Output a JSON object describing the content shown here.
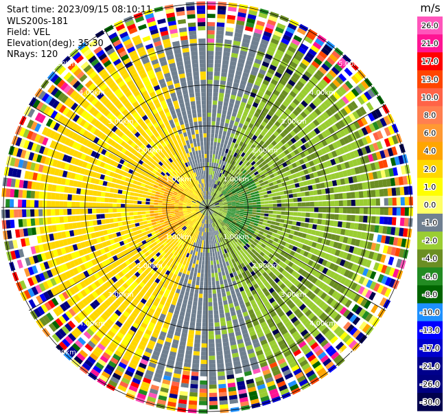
{
  "header": {
    "start_time": "Start time: 2023/09/15 08:10:11",
    "instrument": "WLS200s-181",
    "field": "Field: VEL",
    "elevation": "Elevation(deg): 35.30",
    "nrays": "NRays: 120"
  },
  "colorbar": {
    "unit": "m/s",
    "ticks": [
      "26.0",
      "21.0",
      "17.0",
      "13.0",
      "10.0",
      "8.0",
      "6.0",
      "4.0",
      "2.0",
      "1.0",
      "0.0",
      "-1.0",
      "-2.0",
      "-4.0",
      "-6.0",
      "-8.0",
      "-10.0",
      "-13.0",
      "-17.0",
      "-21.0",
      "-26.0",
      "-30.0"
    ],
    "colors": [
      "#ff55bb",
      "#ff1493",
      "#ff0000",
      "#ff4500",
      "#ff6347",
      "#ff7f50",
      "#ff9933",
      "#ffa500",
      "#ffd700",
      "#ffff00",
      "#ffff66",
      "#708090",
      "#9acd32",
      "#6b8e23",
      "#228b22",
      "#006400",
      "#1e90ff",
      "#0000ff",
      "#0000cd",
      "#00008b",
      "#000080",
      "#00004d"
    ]
  },
  "chart_data": {
    "type": "heatmap",
    "projection": "polar PPI",
    "nrays": 120,
    "range_rings_km": [
      1.0,
      2.0,
      3.0,
      4.0,
      5.0
    ],
    "ring_labels": [
      "1.00km",
      "2.00km",
      "3.00km",
      "4.00km",
      "5.00km"
    ],
    "spokes_deg": [
      0,
      30,
      60,
      90,
      120,
      150,
      180,
      210,
      240,
      270,
      300,
      330
    ],
    "pattern": {
      "west_sector": "yellow / orange (positive velocity, ~2 to 6 m/s)",
      "east_sector": "green (negative velocity, ~-2 to -6 m/s)",
      "north_south_band": "gray (near 0 m/s)",
      "beyond_4km": "noise, full colour range"
    },
    "value_range": [
      -30,
      26
    ]
  }
}
